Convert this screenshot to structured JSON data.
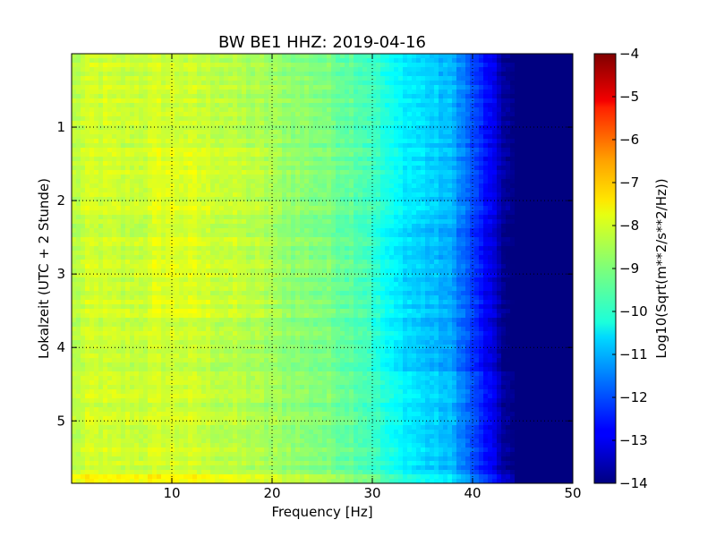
{
  "chart_data": {
    "type": "heatmap",
    "title": "BW BE1 HHZ: 2019-04-16",
    "xlabel": "Frequency [Hz]",
    "ylabel": "Lokalzeit (UTC + 2 Stunde)",
    "xlim": [
      0,
      50
    ],
    "ylim": [
      5.85,
      0
    ],
    "x_ticks": [
      10,
      20,
      30,
      40,
      50
    ],
    "y_ticks": [
      1,
      2,
      3,
      4,
      5
    ],
    "grid": true,
    "colormap": "jet",
    "colorbar": {
      "label": "Log10(Sqrt(m**2/s**2/Hz))",
      "range": [
        -14,
        -4
      ],
      "ticks": [
        -4,
        -5,
        -6,
        -7,
        -8,
        -9,
        -10,
        -11,
        -12,
        -13,
        -14
      ]
    },
    "approx_psd_profile": {
      "frequency_hz": [
        0,
        2,
        5,
        10,
        15,
        20,
        25,
        28,
        30,
        32,
        35,
        38,
        40,
        42,
        43,
        44,
        50
      ],
      "log10_psd": [
        -8.5,
        -8.2,
        -8.3,
        -8.2,
        -8.4,
        -8.7,
        -9.0,
        -9.3,
        -9.6,
        -10.2,
        -10.6,
        -11.0,
        -12.0,
        -13.0,
        -13.6,
        -14.0,
        -14.0
      ]
    }
  }
}
